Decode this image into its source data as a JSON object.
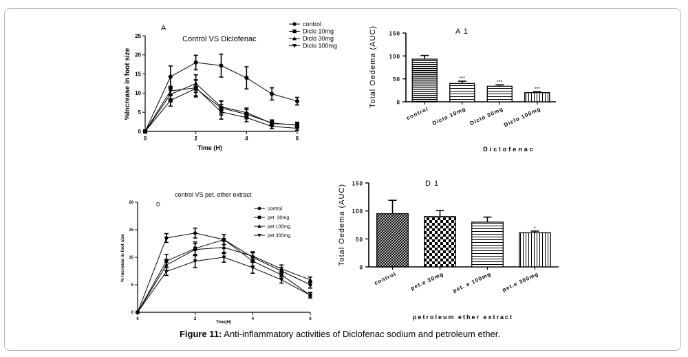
{
  "caption": {
    "label": "Figure 11:",
    "text": " Anti-inflammatory activities of Diclofenac sodium and petroleum ether."
  },
  "chart_data": [
    {
      "id": "A",
      "type": "line",
      "panel_label": "A",
      "title": "Control VS Diclofenac",
      "xlabel": "Time (H)",
      "ylabel": "%Increase in foot size",
      "xlim": [
        0,
        6
      ],
      "ylim": [
        0,
        25
      ],
      "xticks": [
        "0",
        "2",
        "4",
        "6"
      ],
      "yticks": [
        "0",
        "5",
        "10",
        "15",
        "20",
        "25"
      ],
      "x": [
        0,
        1,
        2,
        3,
        4,
        5,
        6
      ],
      "series": [
        {
          "name": "control",
          "marker": "circle",
          "values": [
            0,
            14.3,
            18,
            17.2,
            14,
            9.8,
            7.9
          ],
          "errors": [
            0,
            2.8,
            1.9,
            3,
            2.9,
            1.6,
            1
          ]
        },
        {
          "name": "Diclo 10mg",
          "marker": "square",
          "values": [
            0,
            8.1,
            11.2,
            6.1,
            4.5,
            2.2,
            1.6
          ],
          "errors": [
            0,
            1.5,
            2.2,
            1.8,
            1.2,
            0.8,
            0.7
          ]
        },
        {
          "name": "Diclo 30mg",
          "marker": "triangle-up",
          "values": [
            0,
            9.7,
            12.5,
            6.4,
            4.9,
            2.1,
            1.7
          ],
          "errors": [
            0,
            1.6,
            2.3,
            1.6,
            1.2,
            0.8,
            0.7
          ]
        },
        {
          "name": "Diclo 100mg",
          "marker": "triangle-down",
          "values": [
            0,
            10.6,
            11.4,
            5.1,
            3.6,
            1.3,
            0.8
          ],
          "errors": [
            0,
            1.2,
            2.1,
            1.9,
            1.1,
            0.6,
            0.5
          ]
        }
      ]
    },
    {
      "id": "A1",
      "type": "bar",
      "panel_label": "A 1",
      "xlabel": "Diclofenac",
      "ylabel": "Total Oedema (AUC)",
      "ylim": [
        0,
        150
      ],
      "yticks": [
        "0",
        "50",
        "100",
        "150"
      ],
      "categories": [
        "control",
        "Diclo 10mg",
        "Diclo 30mg",
        "Diclo 100mg"
      ],
      "values": [
        93,
        40,
        34,
        20
      ],
      "errors": [
        8,
        5,
        3,
        2
      ],
      "significance": [
        "",
        "***",
        "***",
        "***"
      ],
      "patterns": [
        "hstripe",
        "hstripe-wide",
        "hstripe-wide",
        "vstripe"
      ]
    },
    {
      "id": "D",
      "type": "line",
      "panel_label": "D",
      "title": "control VS pet. ether extract",
      "xlabel": "Time(H)",
      "ylabel": "% Increase in foot size",
      "xlim": [
        0,
        6
      ],
      "ylim": [
        0,
        20
      ],
      "xticks": [
        "0",
        "2",
        "4",
        "6"
      ],
      "yticks": [
        "0",
        "5",
        "10",
        "15",
        "20"
      ],
      "x": [
        0,
        1,
        2,
        3,
        4,
        5,
        6
      ],
      "series": [
        {
          "name": "control",
          "marker": "circle",
          "values": [
            0,
            13.5,
            14.4,
            13.2,
            10,
            7.5,
            5
          ],
          "errors": [
            0,
            0.8,
            0.9,
            0.9,
            0.8,
            0.6,
            0.6
          ]
        },
        {
          "name": "pet. 30mg",
          "marker": "square",
          "values": [
            0,
            9.3,
            11.6,
            13.2,
            9.3,
            6.8,
            3.1
          ],
          "errors": [
            0,
            1.2,
            1.2,
            0.9,
            0.9,
            0.6,
            0.5
          ]
        },
        {
          "name": "pet.100mg",
          "marker": "triangle-up",
          "values": [
            0,
            8.6,
            11.4,
            11.8,
            10.2,
            7.9,
            5.9
          ],
          "errors": [
            0,
            1,
            1.1,
            1.1,
            0.8,
            0.7,
            0.5
          ]
        },
        {
          "name": "pet.300mg",
          "marker": "triangle-down",
          "values": [
            0,
            7.4,
            9.3,
            10,
            8.1,
            5.9,
            3.1
          ],
          "errors": [
            0,
            0.7,
            1.2,
            0.9,
            1,
            0.6,
            0.5
          ]
        }
      ]
    },
    {
      "id": "D1",
      "type": "bar",
      "panel_label": "D 1",
      "xlabel": "petroleum ether extract",
      "ylabel": "Total Oedema (AUC)",
      "ylim": [
        0,
        150
      ],
      "yticks": [
        "0",
        "50",
        "100",
        "150"
      ],
      "categories": [
        "control",
        "pet.e 30mg",
        "pet. e 100mg",
        "pet.e 300mg"
      ],
      "values": [
        95,
        90,
        80,
        61
      ],
      "errors": [
        24,
        11,
        9,
        3
      ],
      "significance": [
        "",
        "",
        "",
        "*"
      ],
      "patterns": [
        "hatch-dense",
        "checker",
        "hstripe-wide",
        "vstripe"
      ]
    }
  ]
}
